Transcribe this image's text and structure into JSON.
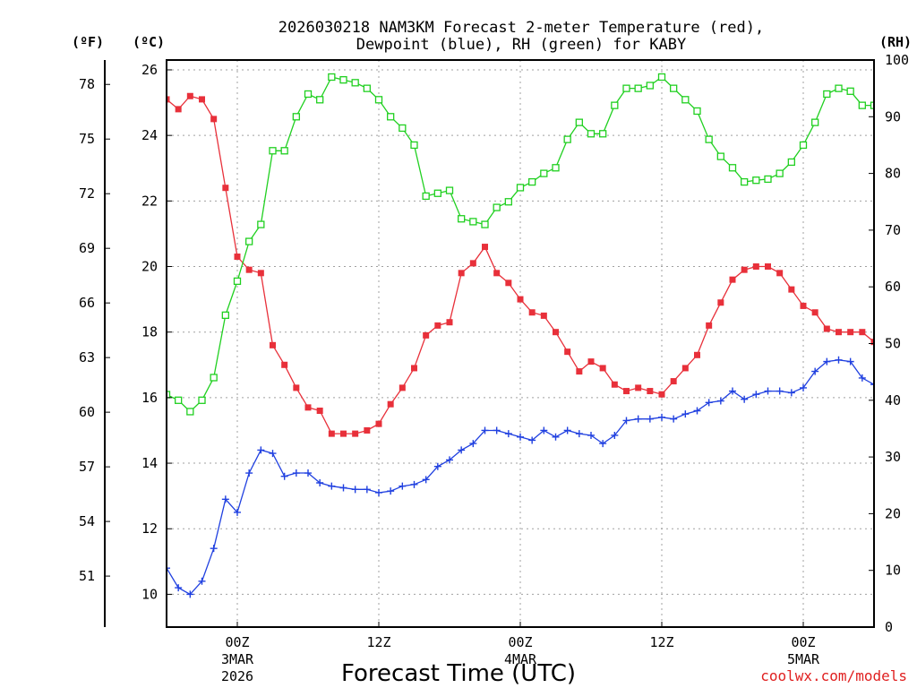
{
  "chart_data": {
    "type": "line",
    "title_line1": "2026030218 NAM3KM Forecast 2-meter Temperature (red),",
    "title_line2": "Dewpoint (blue), RH (green) for KABY",
    "xlabel": "Forecast Time (UTC)",
    "credit": "coolwx.com/models",
    "units": {
      "fahrenheit": "(ºF)",
      "celsius": "(ºC)",
      "rh": "(RH)"
    },
    "colors": {
      "temperature": "#e8303a",
      "dewpoint": "#2040e0",
      "rh": "#20d020"
    },
    "x_hours_range": [
      18,
      78
    ],
    "celsius_range": [
      9,
      26.3
    ],
    "rh_range": [
      0,
      100
    ],
    "celsius_ticks": [
      "10",
      "12",
      "14",
      "16",
      "18",
      "20",
      "22",
      "24",
      "26"
    ],
    "fahrenheit_ticks": [
      "51",
      "54",
      "57",
      "60",
      "63",
      "66",
      "69",
      "72",
      "75",
      "78"
    ],
    "rh_ticks": [
      "0",
      "10",
      "20",
      "30",
      "40",
      "50",
      "60",
      "70",
      "80",
      "90",
      "100"
    ],
    "x_ticks": [
      {
        "hour": 24,
        "label": "00Z",
        "sub1": "3MAR",
        "sub2": "2026"
      },
      {
        "hour": 36,
        "label": "12Z",
        "sub1": "",
        "sub2": ""
      },
      {
        "hour": 48,
        "label": "00Z",
        "sub1": "4MAR",
        "sub2": ""
      },
      {
        "hour": 60,
        "label": "12Z",
        "sub1": "",
        "sub2": ""
      },
      {
        "hour": 72,
        "label": "00Z",
        "sub1": "5MAR",
        "sub2": ""
      }
    ],
    "series": [
      {
        "name": "2-meter Temperature",
        "unit": "C",
        "hours": [
          18,
          19,
          20,
          21,
          22,
          23,
          24,
          25,
          26,
          27,
          28,
          29,
          30,
          31,
          32,
          33,
          34,
          35,
          36,
          37,
          38,
          39,
          40,
          41,
          42,
          43,
          44,
          45,
          46,
          47,
          48,
          49,
          50,
          51,
          52,
          53,
          54,
          55,
          56,
          57,
          58,
          59,
          60,
          61,
          62,
          63,
          64,
          65,
          66,
          67,
          68,
          69,
          70,
          71,
          72,
          73,
          74,
          75,
          76,
          77,
          78
        ],
        "values": [
          25.1,
          24.8,
          25.2,
          25.1,
          24.5,
          22.4,
          20.3,
          19.9,
          19.8,
          17.6,
          17.0,
          16.3,
          15.7,
          15.6,
          14.9,
          14.9,
          14.9,
          15.0,
          15.2,
          15.8,
          16.3,
          16.9,
          17.9,
          18.2,
          18.3,
          19.8,
          20.1,
          20.6,
          19.8,
          19.5,
          19.0,
          18.6,
          18.5,
          18.0,
          17.4,
          16.8,
          17.1,
          16.9,
          16.4,
          16.2,
          16.3,
          16.2,
          16.1,
          16.5,
          16.9,
          17.3,
          18.2,
          18.9,
          19.6,
          19.9,
          20.0,
          20.0,
          19.8,
          19.3,
          18.8,
          18.6,
          18.1,
          18.0,
          18.0,
          18.0,
          17.7
        ]
      },
      {
        "name": "Dewpoint",
        "unit": "C",
        "hours": [
          18,
          19,
          20,
          21,
          22,
          23,
          24,
          25,
          26,
          27,
          28,
          29,
          30,
          31,
          32,
          33,
          34,
          35,
          36,
          37,
          38,
          39,
          40,
          41,
          42,
          43,
          44,
          45,
          46,
          47,
          48,
          49,
          50,
          51,
          52,
          53,
          54,
          55,
          56,
          57,
          58,
          59,
          60,
          61,
          62,
          63,
          64,
          65,
          66,
          67,
          68,
          69,
          70,
          71,
          72,
          73,
          74,
          75,
          76,
          77,
          78
        ],
        "values": [
          10.8,
          10.2,
          10.0,
          10.4,
          11.4,
          12.9,
          12.5,
          13.7,
          14.4,
          14.3,
          13.6,
          13.7,
          13.7,
          13.4,
          13.3,
          13.25,
          13.2,
          13.2,
          13.1,
          13.15,
          13.3,
          13.35,
          13.5,
          13.9,
          14.1,
          14.4,
          14.6,
          15.0,
          15.0,
          14.9,
          14.8,
          14.7,
          15.0,
          14.8,
          15.0,
          14.9,
          14.85,
          14.6,
          14.85,
          15.3,
          15.35,
          15.35,
          15.4,
          15.35,
          15.5,
          15.6,
          15.85,
          15.9,
          16.2,
          15.95,
          16.1,
          16.2,
          16.2,
          16.15,
          16.3,
          16.8,
          17.1,
          17.15,
          17.1,
          16.6,
          16.4
        ]
      },
      {
        "name": "RH",
        "unit": "%",
        "hours": [
          18,
          19,
          20,
          21,
          22,
          23,
          24,
          25,
          26,
          27,
          28,
          29,
          30,
          31,
          32,
          33,
          34,
          35,
          36,
          37,
          38,
          39,
          40,
          41,
          42,
          43,
          44,
          45,
          46,
          47,
          48,
          49,
          50,
          51,
          52,
          53,
          54,
          55,
          56,
          57,
          58,
          59,
          60,
          61,
          62,
          63,
          64,
          65,
          66,
          67,
          68,
          69,
          70,
          71,
          72,
          73,
          74,
          75,
          76,
          77,
          78
        ],
        "values": [
          41,
          40,
          38,
          40,
          44,
          55,
          61,
          68,
          71,
          84,
          84,
          90,
          94,
          93,
          97,
          96.5,
          96,
          95,
          93,
          90,
          88,
          85,
          76,
          76.5,
          77,
          72,
          71.5,
          71,
          74,
          75,
          77.5,
          78.5,
          80,
          81,
          86,
          89,
          87,
          87,
          92,
          95,
          95,
          95.5,
          97,
          95,
          93,
          91,
          86,
          83,
          81,
          78.5,
          78.8,
          79,
          80,
          82,
          85,
          89,
          94,
          95,
          94.5,
          92,
          92
        ]
      }
    ]
  }
}
